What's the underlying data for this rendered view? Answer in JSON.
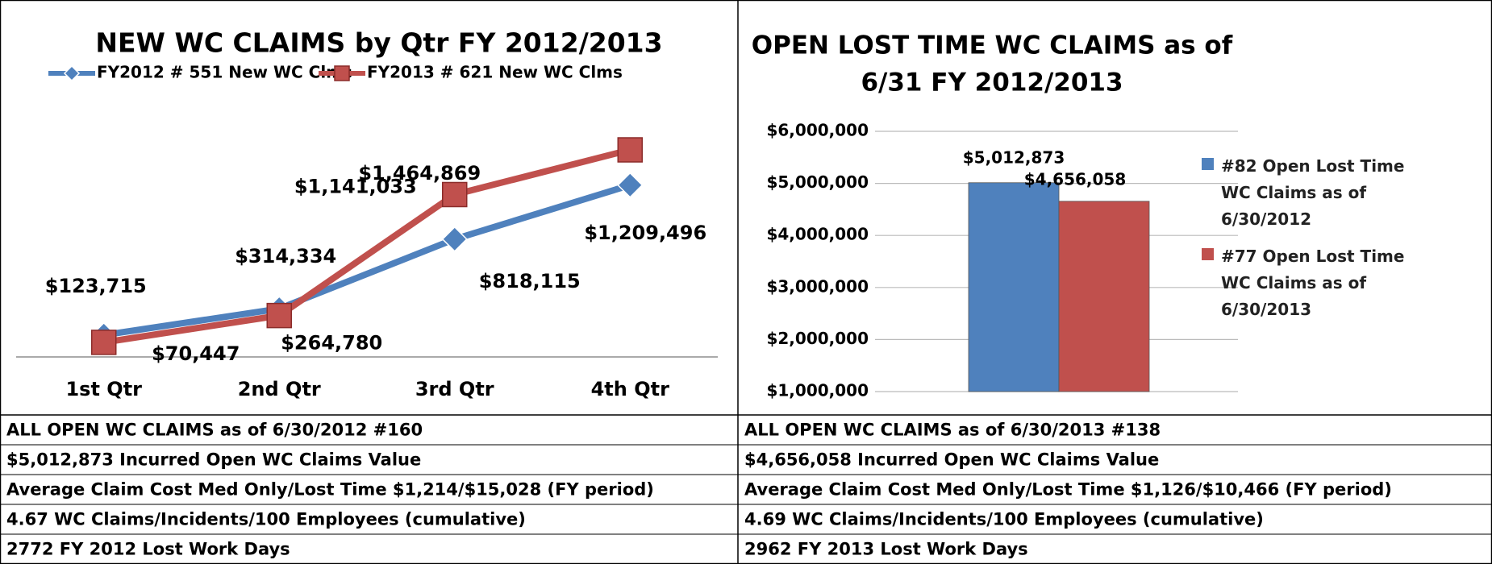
{
  "chart_data": [
    {
      "type": "line",
      "title": "NEW WC CLAIMS by Qtr FY 2012/2013",
      "categories": [
        "1st Qtr",
        "2nd Qtr",
        "3rd Qtr",
        "4th Qtr"
      ],
      "series": [
        {
          "name": "FY2012 # 551 New WC Clms",
          "color": "#4f81bd",
          "label_color": "#3f6ff0",
          "marker": "diamond",
          "values": [
            123715,
            314334,
            818115,
            1209496
          ],
          "value_labels": [
            "$123,715",
            "$314,334",
            "$818,115",
            "$1,209,496"
          ]
        },
        {
          "name": "FY2013 # 621 New WC Clms",
          "color": "#c0504d",
          "label_color": "#c00000",
          "marker": "square",
          "values": [
            70447,
            264780,
            1141033,
            1464869
          ],
          "value_labels": [
            "$70,447",
            "$264,780",
            "$1,141,033",
            "$1,464,869"
          ]
        }
      ]
    },
    {
      "type": "bar",
      "title": [
        "OPEN LOST TIME WC CLAIMS as of",
        "6/31 FY 2012/2013"
      ],
      "ylim": [
        1000000,
        6000000
      ],
      "yticks": [
        {
          "value": 1000000,
          "label": "$1,000,000"
        },
        {
          "value": 2000000,
          "label": "$2,000,000"
        },
        {
          "value": 3000000,
          "label": "$3,000,000"
        },
        {
          "value": 4000000,
          "label": "$4,000,000"
        },
        {
          "value": 5000000,
          "label": "$5,000,000"
        },
        {
          "value": 6000000,
          "label": "$6,000,000"
        }
      ],
      "grid": true,
      "legend": "right",
      "series": [
        {
          "name": "#82 Open Lost Time WC Claims as of 6/30/2012",
          "color": "#4f81bd",
          "values": [
            5012873
          ],
          "value_labels": [
            "$5,012,873"
          ]
        },
        {
          "name": "#77 Open Lost Time WC Claims as of 6/30/2013",
          "color": "#c0504d",
          "values": [
            4656058
          ],
          "value_labels": [
            "$4,656,058"
          ]
        }
      ]
    }
  ],
  "table": {
    "rows": [
      [
        "ALL OPEN WC CLAIMS as of 6/30/2012  #160",
        "ALL OPEN WC CLAIMS as of 6/30/2013  #138"
      ],
      [
        "$5,012,873 Incurred Open WC Claims Value",
        "$4,656,058 Incurred Open WC Claims Value"
      ],
      [
        "Average Claim Cost Med Only/Lost Time $1,214/$15,028 (FY period)",
        "Average Claim Cost Med Only/Lost Time $1,126/$10,466 (FY period)"
      ],
      [
        "4.67  WC Claims/Incidents/100 Employees (cumulative)",
        "4.69  WC Claims/Incidents/100 Employees (cumulative)"
      ],
      [
        "2772  FY 2012 Lost Work Days",
        "2962  FY 2013 Lost Work Days"
      ]
    ]
  }
}
